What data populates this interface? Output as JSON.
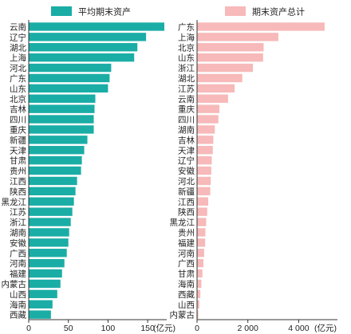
{
  "colors": {
    "left_bar": "#1aada6",
    "right_bar": "#f7b9b9",
    "axis": "#333333",
    "text": "#222222"
  },
  "chart_data": [
    {
      "type": "bar",
      "orientation": "horizontal",
      "legend": "平均期末资产",
      "unit_label": "(亿元)",
      "xlim": [
        0,
        170
      ],
      "xticks": [
        0,
        50,
        100,
        150
      ],
      "xtick_labels": [
        "0",
        "50",
        "100",
        "150"
      ],
      "categories": [
        "云南",
        "辽宁",
        "湖北",
        "上海",
        "河北",
        "广东",
        "山东",
        "北京",
        "吉林",
        "四川",
        "重庆",
        "新疆",
        "天津",
        "甘肃",
        "贵州",
        "江西",
        "陕西",
        "黑龙江",
        "江苏",
        "浙江",
        "湖南",
        "安徽",
        "广西",
        "河南",
        "福建",
        "内蒙古",
        "山西",
        "海南",
        "西藏"
      ],
      "values": [
        171,
        148,
        137,
        133,
        104,
        102,
        100,
        84,
        83,
        82,
        82,
        74,
        70,
        67,
        66,
        61,
        59,
        57,
        55,
        53,
        51,
        50,
        48,
        45,
        42,
        40,
        36,
        30,
        28
      ]
    },
    {
      "type": "bar",
      "orientation": "horizontal",
      "legend": "期末资产总计",
      "unit_label": "(亿元)",
      "xlim": [
        0,
        5400
      ],
      "xticks": [
        0,
        2000,
        4000
      ],
      "xtick_labels": [
        "0",
        "2 000",
        "4 000"
      ],
      "categories": [
        "广东",
        "上海",
        "北京",
        "山东",
        "浙江",
        "湖北",
        "江苏",
        "云南",
        "重庆",
        "四川",
        "湖南",
        "吉林",
        "天津",
        "辽宁",
        "安徽",
        "河北",
        "新疆",
        "江西",
        "陕西",
        "黑龙江",
        "贵州",
        "福建",
        "河南",
        "广西",
        "甘肃",
        "海南",
        "西藏",
        "山西",
        "内蒙古"
      ],
      "values": [
        5020,
        3200,
        2620,
        2600,
        2200,
        1780,
        1480,
        1220,
        880,
        840,
        700,
        640,
        620,
        580,
        560,
        540,
        520,
        440,
        400,
        360,
        330,
        320,
        280,
        250,
        210,
        170,
        130,
        90,
        50
      ]
    }
  ]
}
